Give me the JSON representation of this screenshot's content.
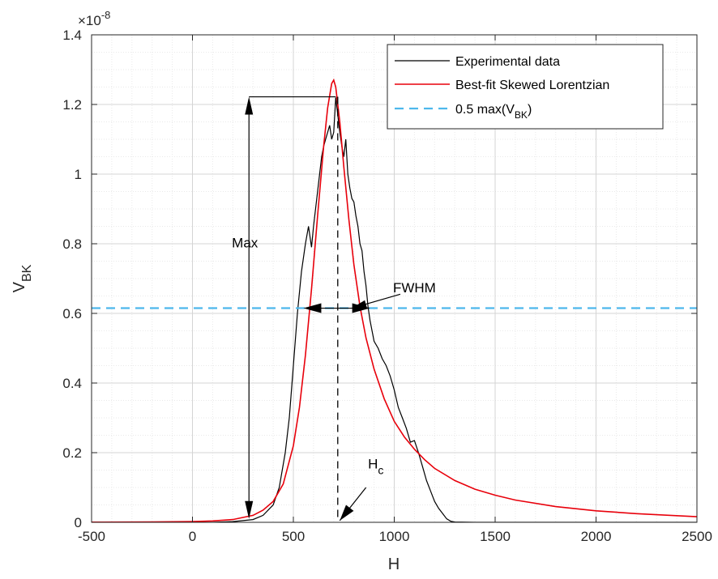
{
  "chart_data": {
    "type": "line",
    "title": "",
    "xlabel": "H",
    "ylabel": "V",
    "ylabel_sub": "BK",
    "y_exponent_prefix": "×10",
    "y_exponent_power": "-8",
    "xlim": [
      -500,
      2500
    ],
    "ylim": [
      0,
      1.4
    ],
    "xticks": [
      -500,
      0,
      500,
      1000,
      1500,
      2000,
      2500
    ],
    "xtick_labels": [
      "-500",
      "0",
      "500",
      "1000",
      "1500",
      "2000",
      "2500"
    ],
    "yticks": [
      0,
      0.2,
      0.4,
      0.6,
      0.8,
      1,
      1.2,
      1.4
    ],
    "ytick_labels": [
      "0",
      "0.2",
      "0.4",
      "0.6",
      "0.8",
      "1",
      "1.2",
      "1.4"
    ],
    "grid": true,
    "minor_grid": true,
    "legend_position": "top-right",
    "series": [
      {
        "name": "Experimental data",
        "color": "#000000",
        "style": "solid",
        "x": [
          -500,
          0,
          100,
          200,
          250,
          300,
          350,
          400,
          430,
          460,
          480,
          500,
          520,
          540,
          560,
          575,
          590,
          600,
          610,
          620,
          630,
          640,
          650,
          660,
          670,
          680,
          690,
          700,
          710,
          720,
          730,
          740,
          750,
          760,
          770,
          780,
          790,
          800,
          810,
          820,
          830,
          840,
          850,
          860,
          870,
          880,
          890,
          900,
          920,
          940,
          960,
          980,
          1000,
          1020,
          1040,
          1060,
          1080,
          1100,
          1120,
          1140,
          1160,
          1180,
          1200,
          1220,
          1240,
          1260,
          1280,
          1300,
          1400,
          1500,
          2000,
          2500
        ],
        "y": [
          0,
          0,
          0,
          0.002,
          0.005,
          0.008,
          0.02,
          0.05,
          0.1,
          0.2,
          0.3,
          0.45,
          0.6,
          0.72,
          0.8,
          0.85,
          0.79,
          0.85,
          0.9,
          0.95,
          1.0,
          1.05,
          1.08,
          1.1,
          1.12,
          1.14,
          1.1,
          1.12,
          1.22,
          1.17,
          1.12,
          1.08,
          1.05,
          1.1,
          1.0,
          0.96,
          0.93,
          0.92,
          0.88,
          0.85,
          0.8,
          0.78,
          0.72,
          0.68,
          0.62,
          0.58,
          0.55,
          0.52,
          0.5,
          0.47,
          0.45,
          0.42,
          0.38,
          0.33,
          0.3,
          0.27,
          0.23,
          0.235,
          0.2,
          0.16,
          0.12,
          0.09,
          0.06,
          0.04,
          0.025,
          0.01,
          0.003,
          0.001,
          0,
          0,
          0,
          0
        ]
      },
      {
        "name": "Best-fit Skewed Lorentzian",
        "color": "#e8000b",
        "style": "solid",
        "x": [
          -500,
          -200,
          0,
          100,
          200,
          300,
          350,
          400,
          450,
          500,
          530,
          560,
          590,
          620,
          650,
          670,
          690,
          700,
          710,
          730,
          750,
          775,
          800,
          830,
          860,
          900,
          950,
          1000,
          1050,
          1100,
          1150,
          1200,
          1300,
          1400,
          1500,
          1600,
          1800,
          2000,
          2200,
          2500
        ],
        "y": [
          0.0005,
          0.001,
          0.002,
          0.004,
          0.008,
          0.02,
          0.035,
          0.06,
          0.11,
          0.22,
          0.33,
          0.48,
          0.67,
          0.88,
          1.08,
          1.19,
          1.26,
          1.27,
          1.25,
          1.15,
          1.02,
          0.87,
          0.74,
          0.62,
          0.53,
          0.44,
          0.355,
          0.29,
          0.245,
          0.21,
          0.18,
          0.155,
          0.12,
          0.095,
          0.078,
          0.064,
          0.045,
          0.033,
          0.025,
          0.016
        ]
      },
      {
        "name": "0.5 max(V",
        "name_sub": "BK",
        "name_suffix": ")",
        "color": "#4db8ec",
        "style": "dashed",
        "x": [
          -500,
          2500
        ],
        "y": [
          0.615,
          0.615
        ]
      }
    ],
    "annotations": [
      {
        "text": "Max",
        "x": 260,
        "y": 0.79
      },
      {
        "text": "FWHM",
        "x": 1100,
        "y": 0.66
      },
      {
        "text": "H",
        "sub": "c",
        "x": 870,
        "y": 0.155
      }
    ]
  }
}
